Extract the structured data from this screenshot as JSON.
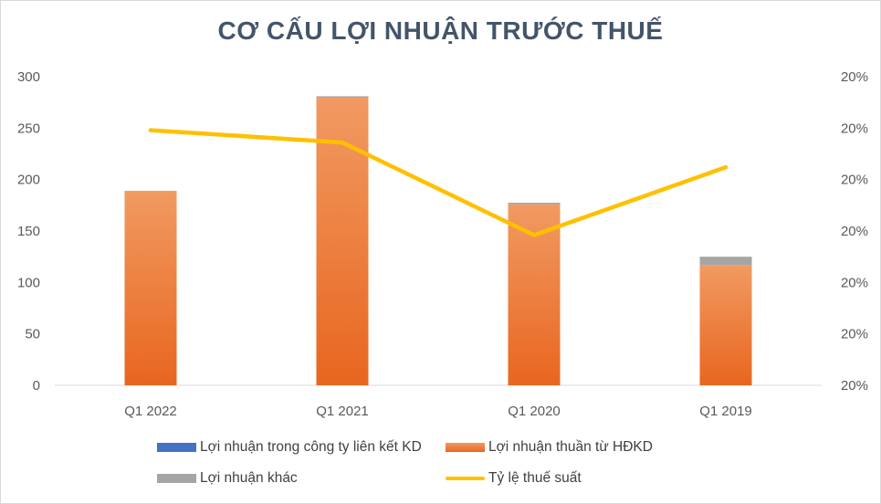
{
  "title": "CƠ CẤU LỢI NHUẬN TRƯỚC THUẾ",
  "colors": {
    "associate": "#4472c4",
    "operating_top": "#f19a62",
    "operating_bottom": "#e8661f",
    "other": "#a5a5a5",
    "tax_line": "#ffc000",
    "title": "#44546a"
  },
  "legend": {
    "associate": "Lợi nhuận trong công ty liên kết KD",
    "operating": "Lợi nhuận thuần từ HĐKD",
    "other": "Lợi nhuận khác",
    "tax": "Tỷ lệ thuế suất"
  },
  "chart_data": {
    "type": "bar",
    "stacked": true,
    "title": "CƠ CẤU LỢI NHUẬN TRƯỚC THUẾ",
    "categories": [
      "Q1 2022",
      "Q1 2021",
      "Q1 2020",
      "Q1 2019"
    ],
    "ylim": [
      0,
      300
    ],
    "y_ticks": [
      "0",
      "50",
      "100",
      "150",
      "200",
      "250",
      "300"
    ],
    "y2_ticks": [
      "20%",
      "20%",
      "20%",
      "20%",
      "20%",
      "20%",
      "20%"
    ],
    "y2lim": [
      0.19,
      0.205
    ],
    "series": [
      {
        "name": "Lợi nhuận trong công ty liên kết KD",
        "type": "bar",
        "values": [
          0,
          0,
          0,
          0
        ]
      },
      {
        "name": "Lợi nhuận thuần từ HĐKD",
        "type": "bar",
        "values": [
          189,
          280,
          176,
          117
        ]
      },
      {
        "name": "Lợi nhuận khác",
        "type": "bar",
        "values": [
          0,
          1,
          1.5,
          8
        ]
      },
      {
        "name": "Tỷ lệ thuế suất",
        "type": "line",
        "axis": "secondary",
        "values": [
          0.2024,
          0.2018,
          0.1973,
          0.2006
        ]
      }
    ],
    "legend_position": "bottom",
    "grid": false
  }
}
